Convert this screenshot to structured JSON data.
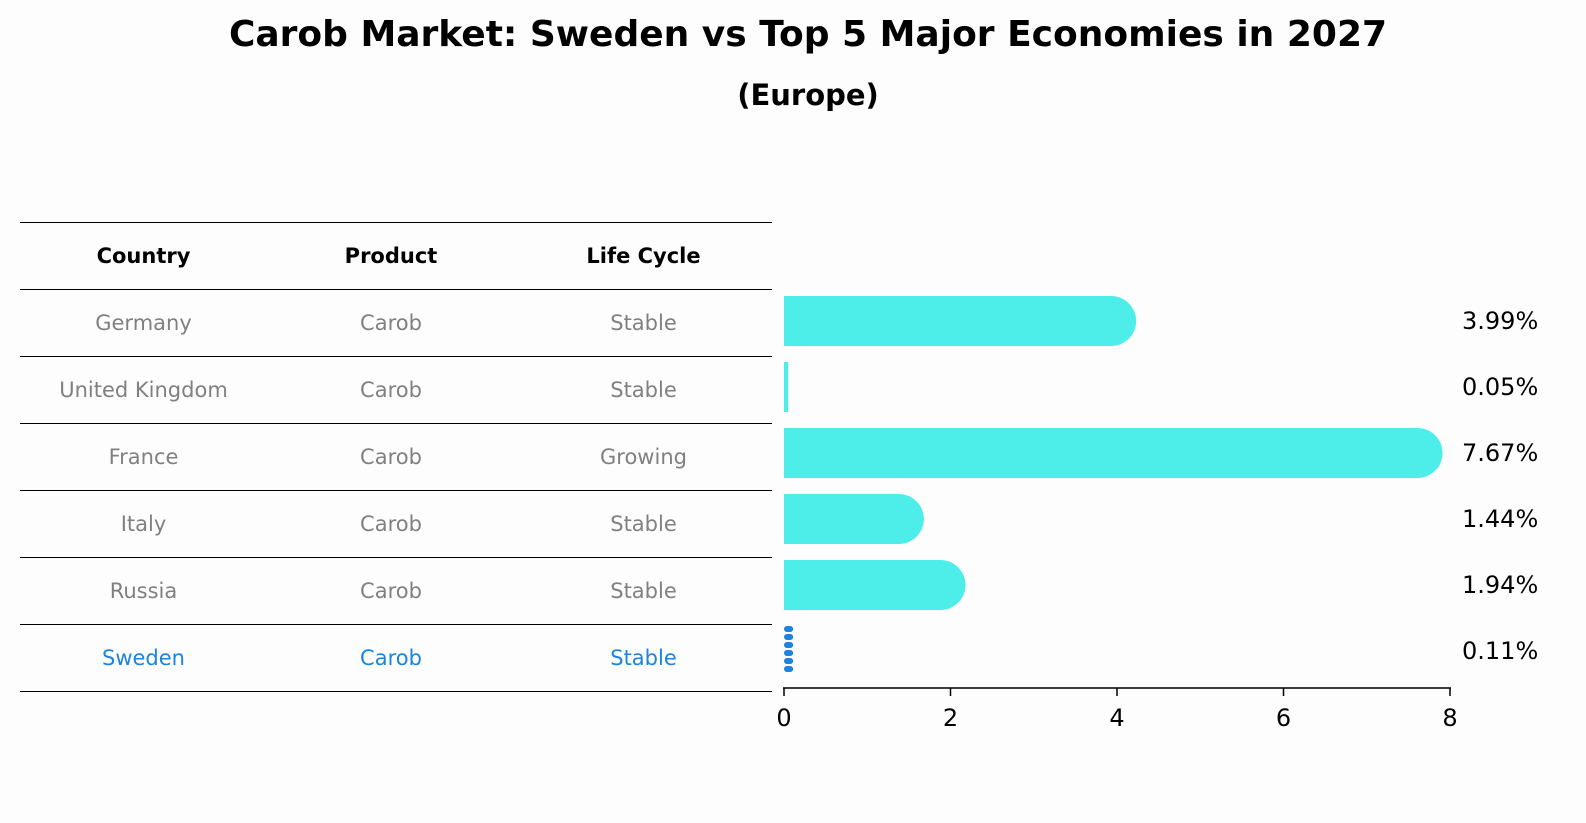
{
  "header": {
    "title": "Carob Market: Sweden vs Top 5 Major Economies in 2027",
    "subtitle": "(Europe)"
  },
  "table": {
    "columns": [
      "Country",
      "Product",
      "Life Cycle"
    ],
    "rows": [
      {
        "country": "Germany",
        "product": "Carob",
        "life_cycle": "Stable",
        "highlight": false
      },
      {
        "country": "United Kingdom",
        "product": "Carob",
        "life_cycle": "Stable",
        "highlight": false
      },
      {
        "country": "France",
        "product": "Carob",
        "life_cycle": "Growing",
        "highlight": false
      },
      {
        "country": "Italy",
        "product": "Carob",
        "life_cycle": "Stable",
        "highlight": false
      },
      {
        "country": "Russia",
        "product": "Carob",
        "life_cycle": "Stable",
        "highlight": false
      },
      {
        "country": "Sweden",
        "product": "Carob",
        "life_cycle": "Stable",
        "highlight": true
      }
    ],
    "colors": {
      "header_text": "#000000",
      "row_text": "#808080",
      "highlight_text": "#1a85e0"
    }
  },
  "chart_data": {
    "type": "bar",
    "orientation": "horizontal",
    "categories": [
      "Germany",
      "United Kingdom",
      "France",
      "Italy",
      "Russia",
      "Sweden"
    ],
    "values": [
      3.99,
      0.05,
      7.67,
      1.44,
      1.94,
      0.11
    ],
    "value_labels": [
      "3.99%",
      "0.05%",
      "7.67%",
      "1.44%",
      "1.94%",
      "0.11%"
    ],
    "xlim": [
      0,
      8
    ],
    "xticks": [
      0,
      2,
      4,
      6,
      8
    ],
    "grid": false,
    "colors": {
      "bar": "#4deeea",
      "highlight_bar": "#1a85e0"
    },
    "highlight_category": "Sweden"
  }
}
